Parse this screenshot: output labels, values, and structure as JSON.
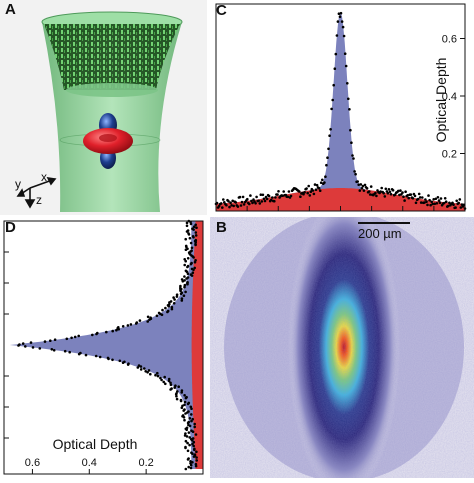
{
  "figure": {
    "panels": [
      {
        "id": "A",
        "label": "A"
      },
      {
        "id": "B",
        "label": "B"
      },
      {
        "id": "C",
        "label": "C"
      },
      {
        "id": "D",
        "label": "D"
      }
    ],
    "panel_a": {
      "axes": {
        "x": "x",
        "y": "y",
        "z": "z"
      },
      "colors": {
        "trap": "#8fd39a",
        "orbital_red": "#e0202a",
        "orbital_blue": "#1e3f8f"
      }
    },
    "panel_b": {
      "scale_bar": "200 µm",
      "colors": {
        "background": "#e6e4f0",
        "halo": "#32318f",
        "core": "#e62d16"
      }
    }
  },
  "chart_data": [
    {
      "panel": "C",
      "type": "area",
      "title": "",
      "xlabel": "",
      "ylabel": "Optical Depth",
      "ylim": [
        0,
        0.72
      ],
      "yticks": [
        0.2,
        0.4,
        0.6
      ],
      "x_range": [
        -1,
        1
      ],
      "series": [
        {
          "name": "",
          "kind": "fit",
          "color": "#7c82bd",
          "center": 0,
          "peak": 0.67,
          "width": 0.055,
          "baseline": 0.02
        },
        {
          "name": "",
          "kind": "thermal",
          "color": "#dd3a3a",
          "center": 0,
          "peak": 0.06,
          "width": 0.45
        }
      ],
      "points_color": "#000000",
      "grid": false,
      "legend": "none"
    },
    {
      "panel": "D",
      "type": "area",
      "title": "",
      "xlabel": "Optical Depth",
      "ylabel": "",
      "xlim": [
        0.7,
        0
      ],
      "xticks": [
        0.6,
        0.4,
        0.2
      ],
      "series": [
        {
          "name": "",
          "kind": "fit",
          "color": "#7c82bd",
          "center": 0,
          "peak": 0.67,
          "width": 0.16
        },
        {
          "name": "",
          "kind": "thermal",
          "color": "#dd3a3a",
          "center": 0,
          "peak": 0.03,
          "width": 0.9
        }
      ],
      "points_color": "#000000",
      "grid": false,
      "legend": "none"
    }
  ]
}
